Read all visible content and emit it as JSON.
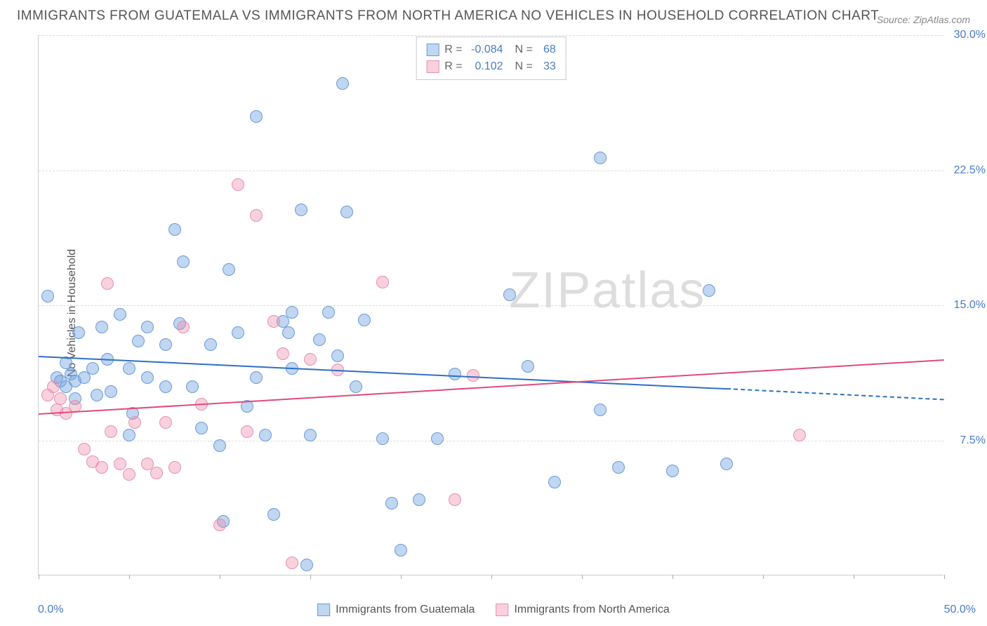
{
  "title": "IMMIGRANTS FROM GUATEMALA VS IMMIGRANTS FROM NORTH AMERICA NO VEHICLES IN HOUSEHOLD CORRELATION CHART",
  "source": "Source: ZipAtlas.com",
  "ylabel": "No Vehicles in Household",
  "watermark": "ZIPatlas",
  "chart": {
    "type": "scatter-correlation",
    "xlim": [
      0,
      50
    ],
    "ylim": [
      0,
      30
    ],
    "y_ticks": [
      7.5,
      15.0,
      22.5,
      30.0
    ],
    "y_tick_labels": [
      "7.5%",
      "15.0%",
      "22.5%",
      "30.0%"
    ],
    "x_ticks": [
      0,
      5,
      10,
      15,
      20,
      25,
      30,
      35,
      40,
      45,
      50
    ],
    "x_start_label": "0.0%",
    "x_end_label": "50.0%",
    "grid_color": "#dddddd",
    "background_color": "#ffffff",
    "point_radius": 9,
    "series": [
      {
        "name": "Immigrants from Guatemala",
        "fill": "rgba(115,163,224,0.45)",
        "stroke": "#6a9bd8",
        "line_color": "#2f6fc5",
        "R": "-0.084",
        "N": "68",
        "trend": {
          "x1": 0,
          "y1": 12.2,
          "x2_solid": 38,
          "y2_solid": 10.4,
          "x2": 50,
          "y2": 9.8
        },
        "points": [
          [
            0.5,
            15.5
          ],
          [
            1,
            11
          ],
          [
            1.2,
            10.8
          ],
          [
            1.5,
            10.5
          ],
          [
            1.8,
            11.2
          ],
          [
            2,
            10.8
          ],
          [
            2,
            9.8
          ],
          [
            2.2,
            13.5
          ],
          [
            2.5,
            11
          ],
          [
            3,
            11.5
          ],
          [
            3.2,
            10
          ],
          [
            3.5,
            13.8
          ],
          [
            3.8,
            12
          ],
          [
            4,
            10.2
          ],
          [
            4.5,
            14.5
          ],
          [
            5,
            11.5
          ],
          [
            5,
            7.8
          ],
          [
            5.2,
            9
          ],
          [
            5.5,
            13
          ],
          [
            6,
            11
          ],
          [
            6,
            13.8
          ],
          [
            7,
            12.8
          ],
          [
            7,
            10.5
          ],
          [
            7.5,
            19.2
          ],
          [
            7.8,
            14
          ],
          [
            8,
            17.4
          ],
          [
            8.5,
            10.5
          ],
          [
            9,
            8.2
          ],
          [
            9.5,
            12.8
          ],
          [
            10,
            7.2
          ],
          [
            10.2,
            3.0
          ],
          [
            10.5,
            17.0
          ],
          [
            11,
            13.5
          ],
          [
            11.5,
            9.4
          ],
          [
            12,
            25.5
          ],
          [
            12,
            11
          ],
          [
            12.5,
            7.8
          ],
          [
            13,
            3.4
          ],
          [
            13.5,
            14.1
          ],
          [
            13.8,
            13.5
          ],
          [
            14,
            11.5
          ],
          [
            14,
            14.6
          ],
          [
            14.5,
            20.3
          ],
          [
            14.8,
            0.6
          ],
          [
            15,
            7.8
          ],
          [
            15.5,
            13.1
          ],
          [
            16,
            14.6
          ],
          [
            16.5,
            12.2
          ],
          [
            16.8,
            27.3
          ],
          [
            17,
            20.2
          ],
          [
            17.5,
            10.5
          ],
          [
            18,
            14.2
          ],
          [
            19,
            7.6
          ],
          [
            19.5,
            4.0
          ],
          [
            20,
            1.4
          ],
          [
            21,
            4.2
          ],
          [
            22,
            7.6
          ],
          [
            23,
            11.2
          ],
          [
            26,
            15.6
          ],
          [
            27,
            11.6
          ],
          [
            28.5,
            5.2
          ],
          [
            31,
            23.2
          ],
          [
            31,
            9.2
          ],
          [
            32,
            6.0
          ],
          [
            35,
            5.8
          ],
          [
            37,
            15.8
          ],
          [
            38,
            6.2
          ],
          [
            1.5,
            11.8
          ]
        ]
      },
      {
        "name": "Immigrants from North America",
        "fill": "rgba(238,140,170,0.4)",
        "stroke": "#e78fb0",
        "line_color": "#e04a7b",
        "R": "0.102",
        "N": "33",
        "trend": {
          "x1": 0,
          "y1": 9.0,
          "x2_solid": 50,
          "y2_solid": 12.0,
          "x2": 50,
          "y2": 12.0
        },
        "points": [
          [
            0.5,
            10
          ],
          [
            0.8,
            10.5
          ],
          [
            1,
            9.2
          ],
          [
            1.2,
            9.8
          ],
          [
            1.5,
            9.0
          ],
          [
            2,
            9.4
          ],
          [
            2.5,
            7.0
          ],
          [
            3,
            6.3
          ],
          [
            3.5,
            6.0
          ],
          [
            3.8,
            16.2
          ],
          [
            4,
            8.0
          ],
          [
            4.5,
            6.2
          ],
          [
            5,
            5.6
          ],
          [
            5.3,
            8.5
          ],
          [
            6,
            6.2
          ],
          [
            6.5,
            5.7
          ],
          [
            7,
            8.5
          ],
          [
            7.5,
            6.0
          ],
          [
            8,
            13.8
          ],
          [
            9,
            9.5
          ],
          [
            10,
            2.8
          ],
          [
            11,
            21.7
          ],
          [
            11.5,
            8.0
          ],
          [
            12,
            20.0
          ],
          [
            13,
            14.1
          ],
          [
            13.5,
            12.3
          ],
          [
            14,
            0.7
          ],
          [
            15,
            12.0
          ],
          [
            16.5,
            11.4
          ],
          [
            19,
            16.3
          ],
          [
            23,
            4.2
          ],
          [
            24,
            11.1
          ],
          [
            42,
            7.8
          ]
        ]
      }
    ]
  },
  "bottom_legend": [
    "Immigrants from Guatemala",
    "Immigrants from North America"
  ]
}
